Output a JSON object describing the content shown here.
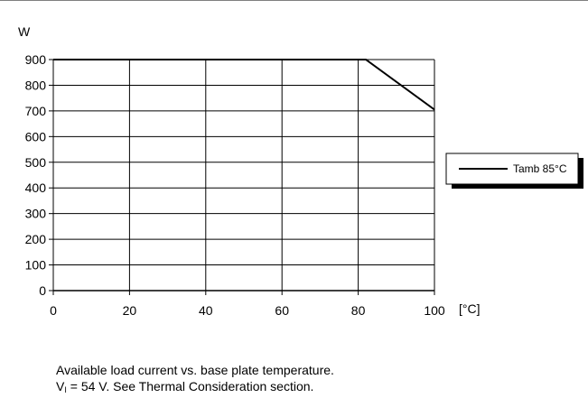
{
  "chart_data": {
    "type": "line",
    "ylabel": "W",
    "xlabel": "[°C]",
    "xlim": [
      0,
      100
    ],
    "ylim": [
      0,
      900
    ],
    "x_ticks": [
      "0",
      "20",
      "40",
      "60",
      "80",
      "100"
    ],
    "y_ticks": [
      "0",
      "100",
      "200",
      "300",
      "400",
      "500",
      "600",
      "700",
      "800",
      "900"
    ],
    "grid": true,
    "legend_position": "right",
    "series": [
      {
        "name": "Tamb 85°C",
        "color": "#000000",
        "x": [
          0,
          82,
          100
        ],
        "y": [
          900,
          900,
          705
        ]
      }
    ]
  },
  "caption": {
    "line1": "Available load current vs. base plate temperature.",
    "line2_symbol": "V",
    "line2_sub": "I",
    "line2_rest": " = 54 V. See Thermal Consideration section."
  }
}
